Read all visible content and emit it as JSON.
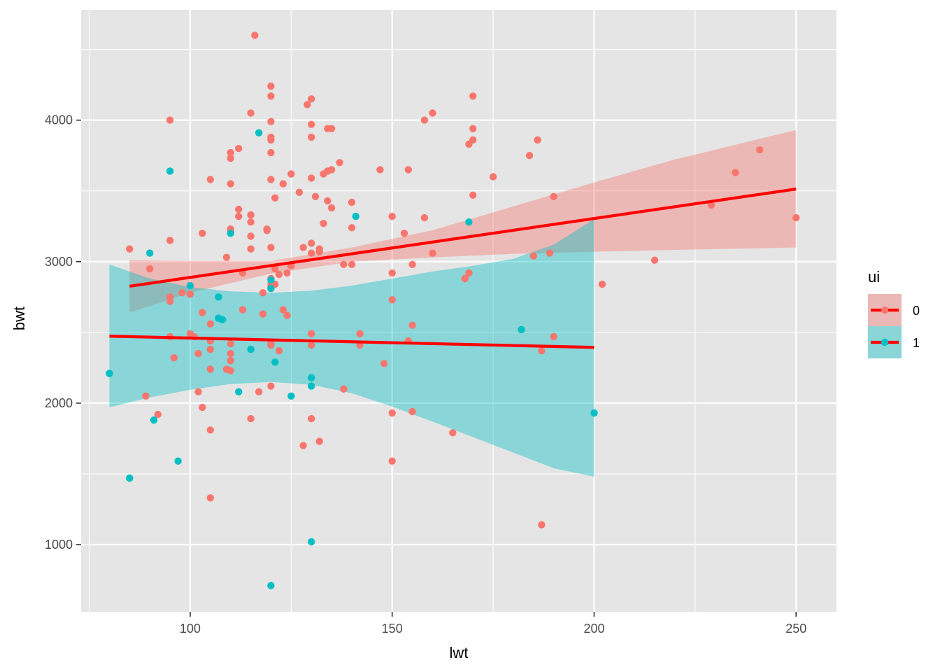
{
  "chart_data": {
    "type": "scatter",
    "xlabel": "lwt",
    "ylabel": "bwt",
    "xlim": [
      73,
      260
    ],
    "ylim": [
      525,
      4780
    ],
    "x_ticks": [
      100,
      150,
      200,
      250
    ],
    "x_minor": [
      75,
      125,
      175,
      225
    ],
    "y_ticks": [
      1000,
      2000,
      3000,
      4000
    ],
    "y_minor": [
      1500,
      2500,
      3500,
      4500
    ],
    "grid": true,
    "legend": {
      "title": "ui",
      "placement": "right",
      "entries": [
        "0",
        "1"
      ]
    },
    "colors": {
      "panel": "#E5E5E5",
      "grid": "#FFFFFF",
      "series_0": "#F8766D",
      "series_1": "#00BFC4",
      "fit_line": "#FF0000"
    },
    "series": [
      {
        "name": "0",
        "points": [
          [
            85,
            3090
          ],
          [
            89,
            2050
          ],
          [
            90,
            2950
          ],
          [
            92,
            1920
          ],
          [
            95,
            4000
          ],
          [
            95,
            3150
          ],
          [
            95,
            2750
          ],
          [
            95,
            2720
          ],
          [
            95,
            2470
          ],
          [
            96,
            2320
          ],
          [
            98,
            2780
          ],
          [
            100,
            2770
          ],
          [
            100,
            2490
          ],
          [
            101,
            2470
          ],
          [
            102,
            2350
          ],
          [
            102,
            2080
          ],
          [
            103,
            1970
          ],
          [
            103,
            3200
          ],
          [
            103,
            2640
          ],
          [
            105,
            3580
          ],
          [
            105,
            2560
          ],
          [
            105,
            2440
          ],
          [
            105,
            2380
          ],
          [
            105,
            2240
          ],
          [
            105,
            1810
          ],
          [
            105,
            1330
          ],
          [
            109,
            3030
          ],
          [
            109,
            2240
          ],
          [
            110,
            3770
          ],
          [
            110,
            3730
          ],
          [
            110,
            3550
          ],
          [
            110,
            3230
          ],
          [
            110,
            3210
          ],
          [
            110,
            2420
          ],
          [
            110,
            2350
          ],
          [
            110,
            2300
          ],
          [
            110,
            2230
          ],
          [
            112,
            3800
          ],
          [
            112,
            3370
          ],
          [
            112,
            3320
          ],
          [
            113,
            2920
          ],
          [
            113,
            2660
          ],
          [
            115,
            4050
          ],
          [
            115,
            3330
          ],
          [
            115,
            3280
          ],
          [
            115,
            3180
          ],
          [
            115,
            3090
          ],
          [
            115,
            1890
          ],
          [
            116,
            4600
          ],
          [
            117,
            2080
          ],
          [
            118,
            2780
          ],
          [
            118,
            2630
          ],
          [
            119,
            3230
          ],
          [
            119,
            3220
          ],
          [
            120,
            4240
          ],
          [
            120,
            4170
          ],
          [
            120,
            3990
          ],
          [
            120,
            3880
          ],
          [
            120,
            3860
          ],
          [
            120,
            3770
          ],
          [
            120,
            3580
          ],
          [
            120,
            3100
          ],
          [
            120,
            2880
          ],
          [
            120,
            2840
          ],
          [
            120,
            2820
          ],
          [
            120,
            2430
          ],
          [
            120,
            2410
          ],
          [
            120,
            2120
          ],
          [
            121,
            3450
          ],
          [
            121,
            2950
          ],
          [
            121,
            2840
          ],
          [
            122,
            2910
          ],
          [
            122,
            2370
          ],
          [
            123,
            3550
          ],
          [
            123,
            2660
          ],
          [
            124,
            2920
          ],
          [
            124,
            2620
          ],
          [
            125,
            3620
          ],
          [
            125,
            2970
          ],
          [
            127,
            3490
          ],
          [
            128,
            3100
          ],
          [
            128,
            1700
          ],
          [
            129,
            4110
          ],
          [
            130,
            4150
          ],
          [
            130,
            3970
          ],
          [
            130,
            3880
          ],
          [
            130,
            3590
          ],
          [
            130,
            3130
          ],
          [
            130,
            3060
          ],
          [
            130,
            2490
          ],
          [
            130,
            2410
          ],
          [
            130,
            1890
          ],
          [
            131,
            3460
          ],
          [
            132,
            3090
          ],
          [
            132,
            3070
          ],
          [
            132,
            1730
          ],
          [
            133,
            3620
          ],
          [
            133,
            3270
          ],
          [
            134,
            3940
          ],
          [
            134,
            3640
          ],
          [
            134,
            3430
          ],
          [
            135,
            3940
          ],
          [
            135,
            3650
          ],
          [
            135,
            3380
          ],
          [
            137,
            3700
          ],
          [
            138,
            2980
          ],
          [
            138,
            2100
          ],
          [
            140,
            3420
          ],
          [
            140,
            3240
          ],
          [
            140,
            2980
          ],
          [
            142,
            2490
          ],
          [
            142,
            2410
          ],
          [
            147,
            3650
          ],
          [
            148,
            2280
          ],
          [
            150,
            3320
          ],
          [
            150,
            2920
          ],
          [
            150,
            2730
          ],
          [
            150,
            1930
          ],
          [
            150,
            1590
          ],
          [
            153,
            3200
          ],
          [
            154,
            3650
          ],
          [
            154,
            2440
          ],
          [
            155,
            2980
          ],
          [
            155,
            2550
          ],
          [
            155,
            1940
          ],
          [
            158,
            4000
          ],
          [
            158,
            3310
          ],
          [
            160,
            4050
          ],
          [
            160,
            3060
          ],
          [
            165,
            1790
          ],
          [
            168,
            2880
          ],
          [
            169,
            3830
          ],
          [
            169,
            2920
          ],
          [
            170,
            4170
          ],
          [
            170,
            3940
          ],
          [
            170,
            3860
          ],
          [
            170,
            3470
          ],
          [
            175,
            3600
          ],
          [
            184,
            3750
          ],
          [
            185,
            3040
          ],
          [
            186,
            3860
          ],
          [
            187,
            2370
          ],
          [
            187,
            1140
          ],
          [
            189,
            3060
          ],
          [
            190,
            3460
          ],
          [
            190,
            2470
          ],
          [
            202,
            2840
          ],
          [
            215,
            3010
          ],
          [
            229,
            3400
          ],
          [
            235,
            3630
          ],
          [
            241,
            3790
          ],
          [
            250,
            3310
          ]
        ],
        "fit": {
          "x": [
            85,
            250
          ],
          "y": [
            2826,
            3513
          ]
        },
        "band": {
          "x": [
            85,
            100,
            120,
            140,
            160,
            180,
            200,
            220,
            250
          ],
          "lower": [
            2640,
            2780,
            2915,
            3000,
            3030,
            3055,
            3070,
            3083,
            3100
          ],
          "upper": [
            3010,
            3005,
            3005,
            3100,
            3222,
            3390,
            3560,
            3722,
            3930
          ]
        }
      },
      {
        "name": "1",
        "points": [
          [
            80,
            2210
          ],
          [
            85,
            1470
          ],
          [
            90,
            3060
          ],
          [
            91,
            1880
          ],
          [
            95,
            3640
          ],
          [
            97,
            1590
          ],
          [
            100,
            2830
          ],
          [
            107,
            2750
          ],
          [
            107,
            2600
          ],
          [
            108,
            2590
          ],
          [
            110,
            3200
          ],
          [
            112,
            2080
          ],
          [
            115,
            2380
          ],
          [
            117,
            3910
          ],
          [
            120,
            2870
          ],
          [
            120,
            2810
          ],
          [
            120,
            710
          ],
          [
            121,
            2290
          ],
          [
            125,
            2050
          ],
          [
            130,
            2180
          ],
          [
            130,
            2120
          ],
          [
            130,
            1020
          ],
          [
            141,
            3320
          ],
          [
            169,
            3280
          ],
          [
            182,
            2520
          ],
          [
            200,
            1930
          ]
        ],
        "fit": {
          "x": [
            80,
            200
          ],
          "y": [
            2473,
            2394
          ]
        },
        "band": {
          "x": [
            80,
            90,
            100,
            110,
            120,
            130,
            140,
            150,
            160,
            170,
            180,
            190,
            200
          ],
          "lower": [
            1970,
            2040,
            2095,
            2135,
            2150,
            2130,
            2070,
            1975,
            1870,
            1760,
            1650,
            1540,
            1480
          ],
          "upper": [
            2980,
            2880,
            2820,
            2790,
            2780,
            2795,
            2830,
            2880,
            2930,
            2970,
            3020,
            3120,
            3300
          ]
        }
      }
    ]
  }
}
